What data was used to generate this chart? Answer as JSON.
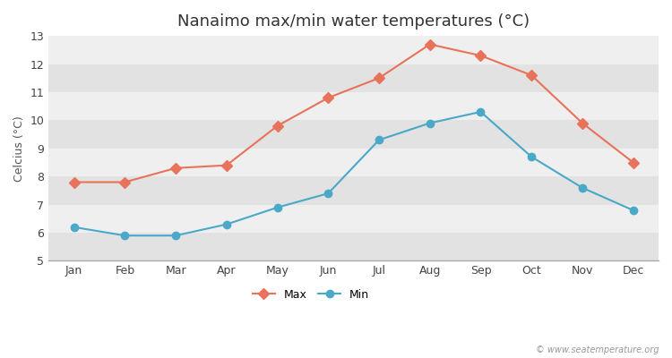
{
  "title": "Nanaimo max/min water temperatures (°C)",
  "ylabel": "Celcius (°C)",
  "months": [
    "Jan",
    "Feb",
    "Mar",
    "Apr",
    "May",
    "Jun",
    "Jul",
    "Aug",
    "Sep",
    "Oct",
    "Nov",
    "Dec"
  ],
  "max_values": [
    7.8,
    7.8,
    8.3,
    8.4,
    9.8,
    10.8,
    11.5,
    12.7,
    12.3,
    11.6,
    9.9,
    8.5
  ],
  "min_values": [
    6.2,
    5.9,
    5.9,
    6.3,
    6.9,
    7.4,
    9.3,
    9.9,
    10.3,
    8.7,
    7.6,
    6.8
  ],
  "max_color": "#e8725a",
  "min_color": "#4aa8c8",
  "ylim": [
    5,
    13
  ],
  "yticks": [
    5,
    6,
    7,
    8,
    9,
    10,
    11,
    12,
    13
  ],
  "fig_bg_color": "#ffffff",
  "band_light": "#efefef",
  "band_dark": "#e2e2e2",
  "watermark": "© www.seatemperature.org",
  "title_fontsize": 13,
  "label_fontsize": 9,
  "tick_fontsize": 9
}
